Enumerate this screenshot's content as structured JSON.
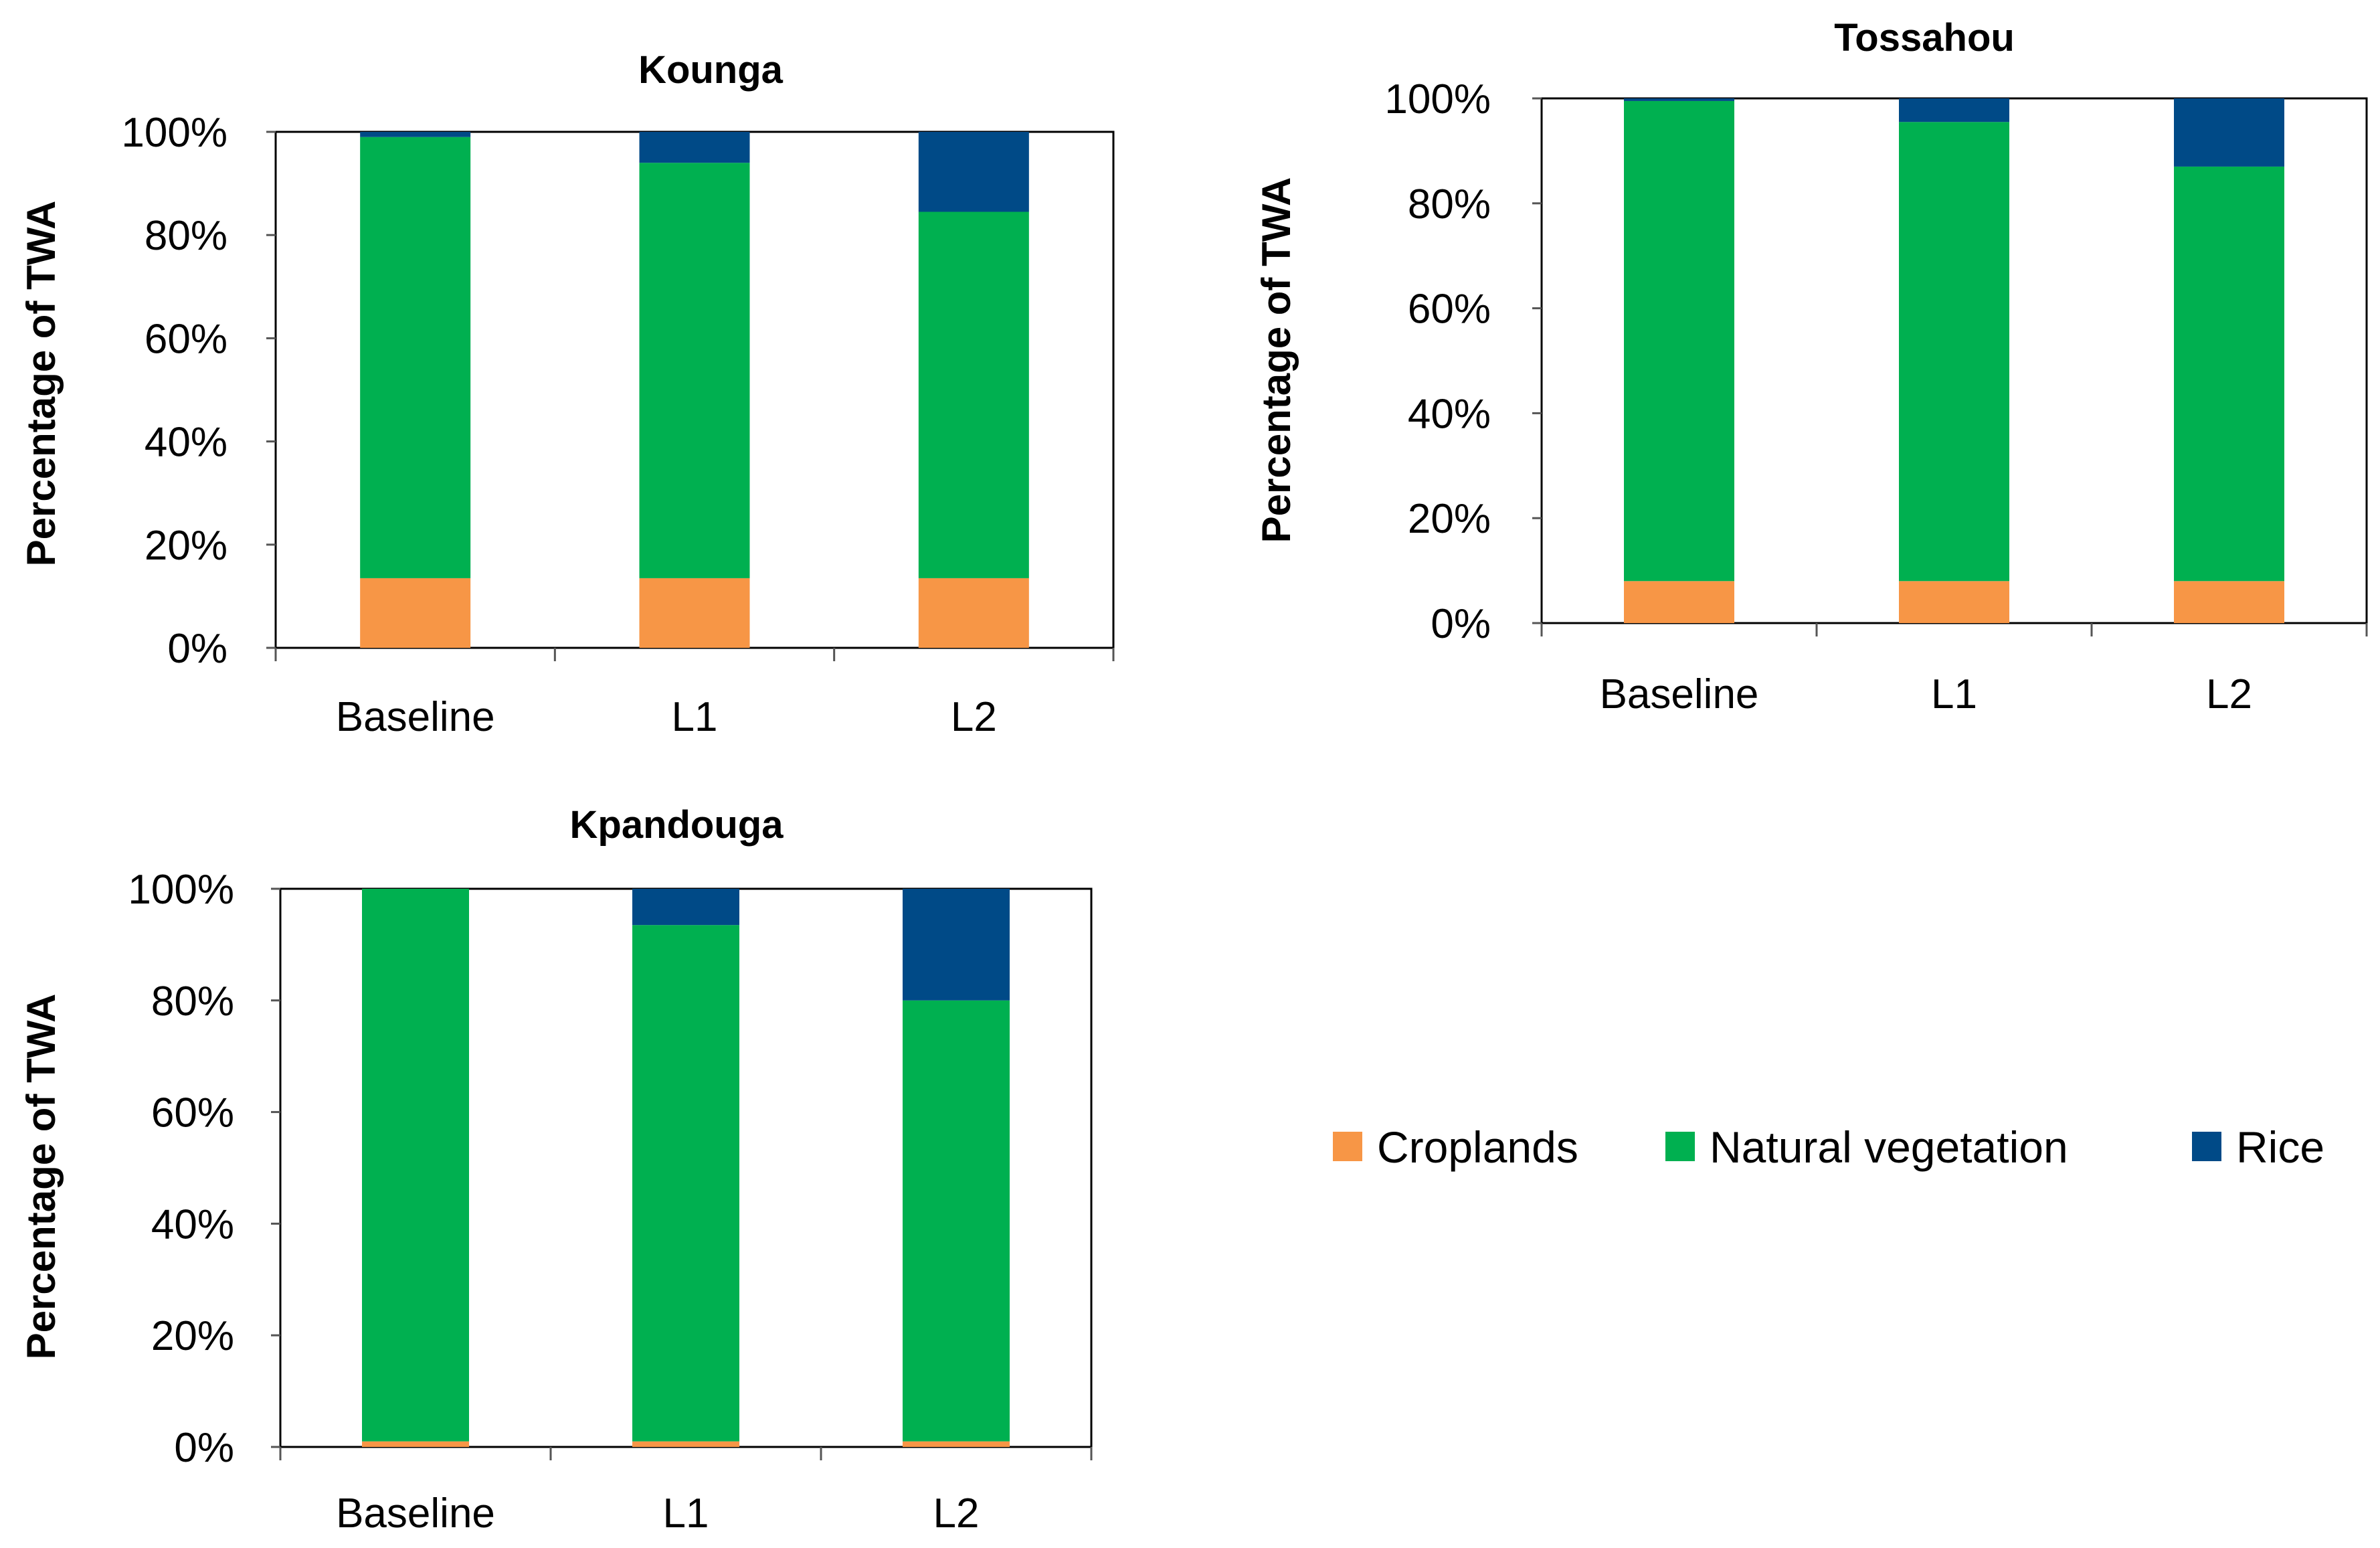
{
  "legend": {
    "items": [
      {
        "label": "Croplands",
        "color": "#F79646"
      },
      {
        "label": "Natural vegetation",
        "color": "#00B050"
      },
      {
        "label": "Rice",
        "color": "#004A87"
      }
    ]
  },
  "chart_data": [
    {
      "type": "bar",
      "stacked": true,
      "title": "Kounga",
      "xlabel": "",
      "ylabel": "Percentage of TWA",
      "ylim": [
        0,
        100
      ],
      "yticks": [
        "0%",
        "20%",
        "40%",
        "60%",
        "80%",
        "100%"
      ],
      "categories": [
        "Baseline",
        "L1",
        "L2"
      ],
      "series": [
        {
          "name": "Croplands",
          "values": [
            13.5,
            13.5,
            13.5
          ]
        },
        {
          "name": "Natural vegetation",
          "values": [
            85.5,
            80.5,
            71
          ]
        },
        {
          "name": "Rice",
          "values": [
            1,
            6,
            15.5
          ]
        }
      ]
    },
    {
      "type": "bar",
      "stacked": true,
      "title": "Tossahou",
      "xlabel": "",
      "ylabel": "Percentage of TWA",
      "ylim": [
        0,
        100
      ],
      "yticks": [
        "0%",
        "20%",
        "40%",
        "60%",
        "80%",
        "100%"
      ],
      "categories": [
        "Baseline",
        "L1",
        "L2"
      ],
      "series": [
        {
          "name": "Croplands",
          "values": [
            8,
            8,
            8
          ]
        },
        {
          "name": "Natural vegetation",
          "values": [
            91.5,
            87.5,
            79
          ]
        },
        {
          "name": "Rice",
          "values": [
            0.5,
            4.5,
            13
          ]
        }
      ]
    },
    {
      "type": "bar",
      "stacked": true,
      "title": "Kpandouga",
      "xlabel": "",
      "ylabel": "Percentage of TWA",
      "ylim": [
        0,
        100
      ],
      "yticks": [
        "0%",
        "20%",
        "40%",
        "60%",
        "80%",
        "100%"
      ],
      "categories": [
        "Baseline",
        "L1",
        "L2"
      ],
      "series": [
        {
          "name": "Croplands",
          "values": [
            1,
            1,
            1
          ]
        },
        {
          "name": "Natural vegetation",
          "values": [
            99,
            92.5,
            79
          ]
        },
        {
          "name": "Rice",
          "values": [
            0,
            6.5,
            20
          ]
        }
      ]
    }
  ]
}
